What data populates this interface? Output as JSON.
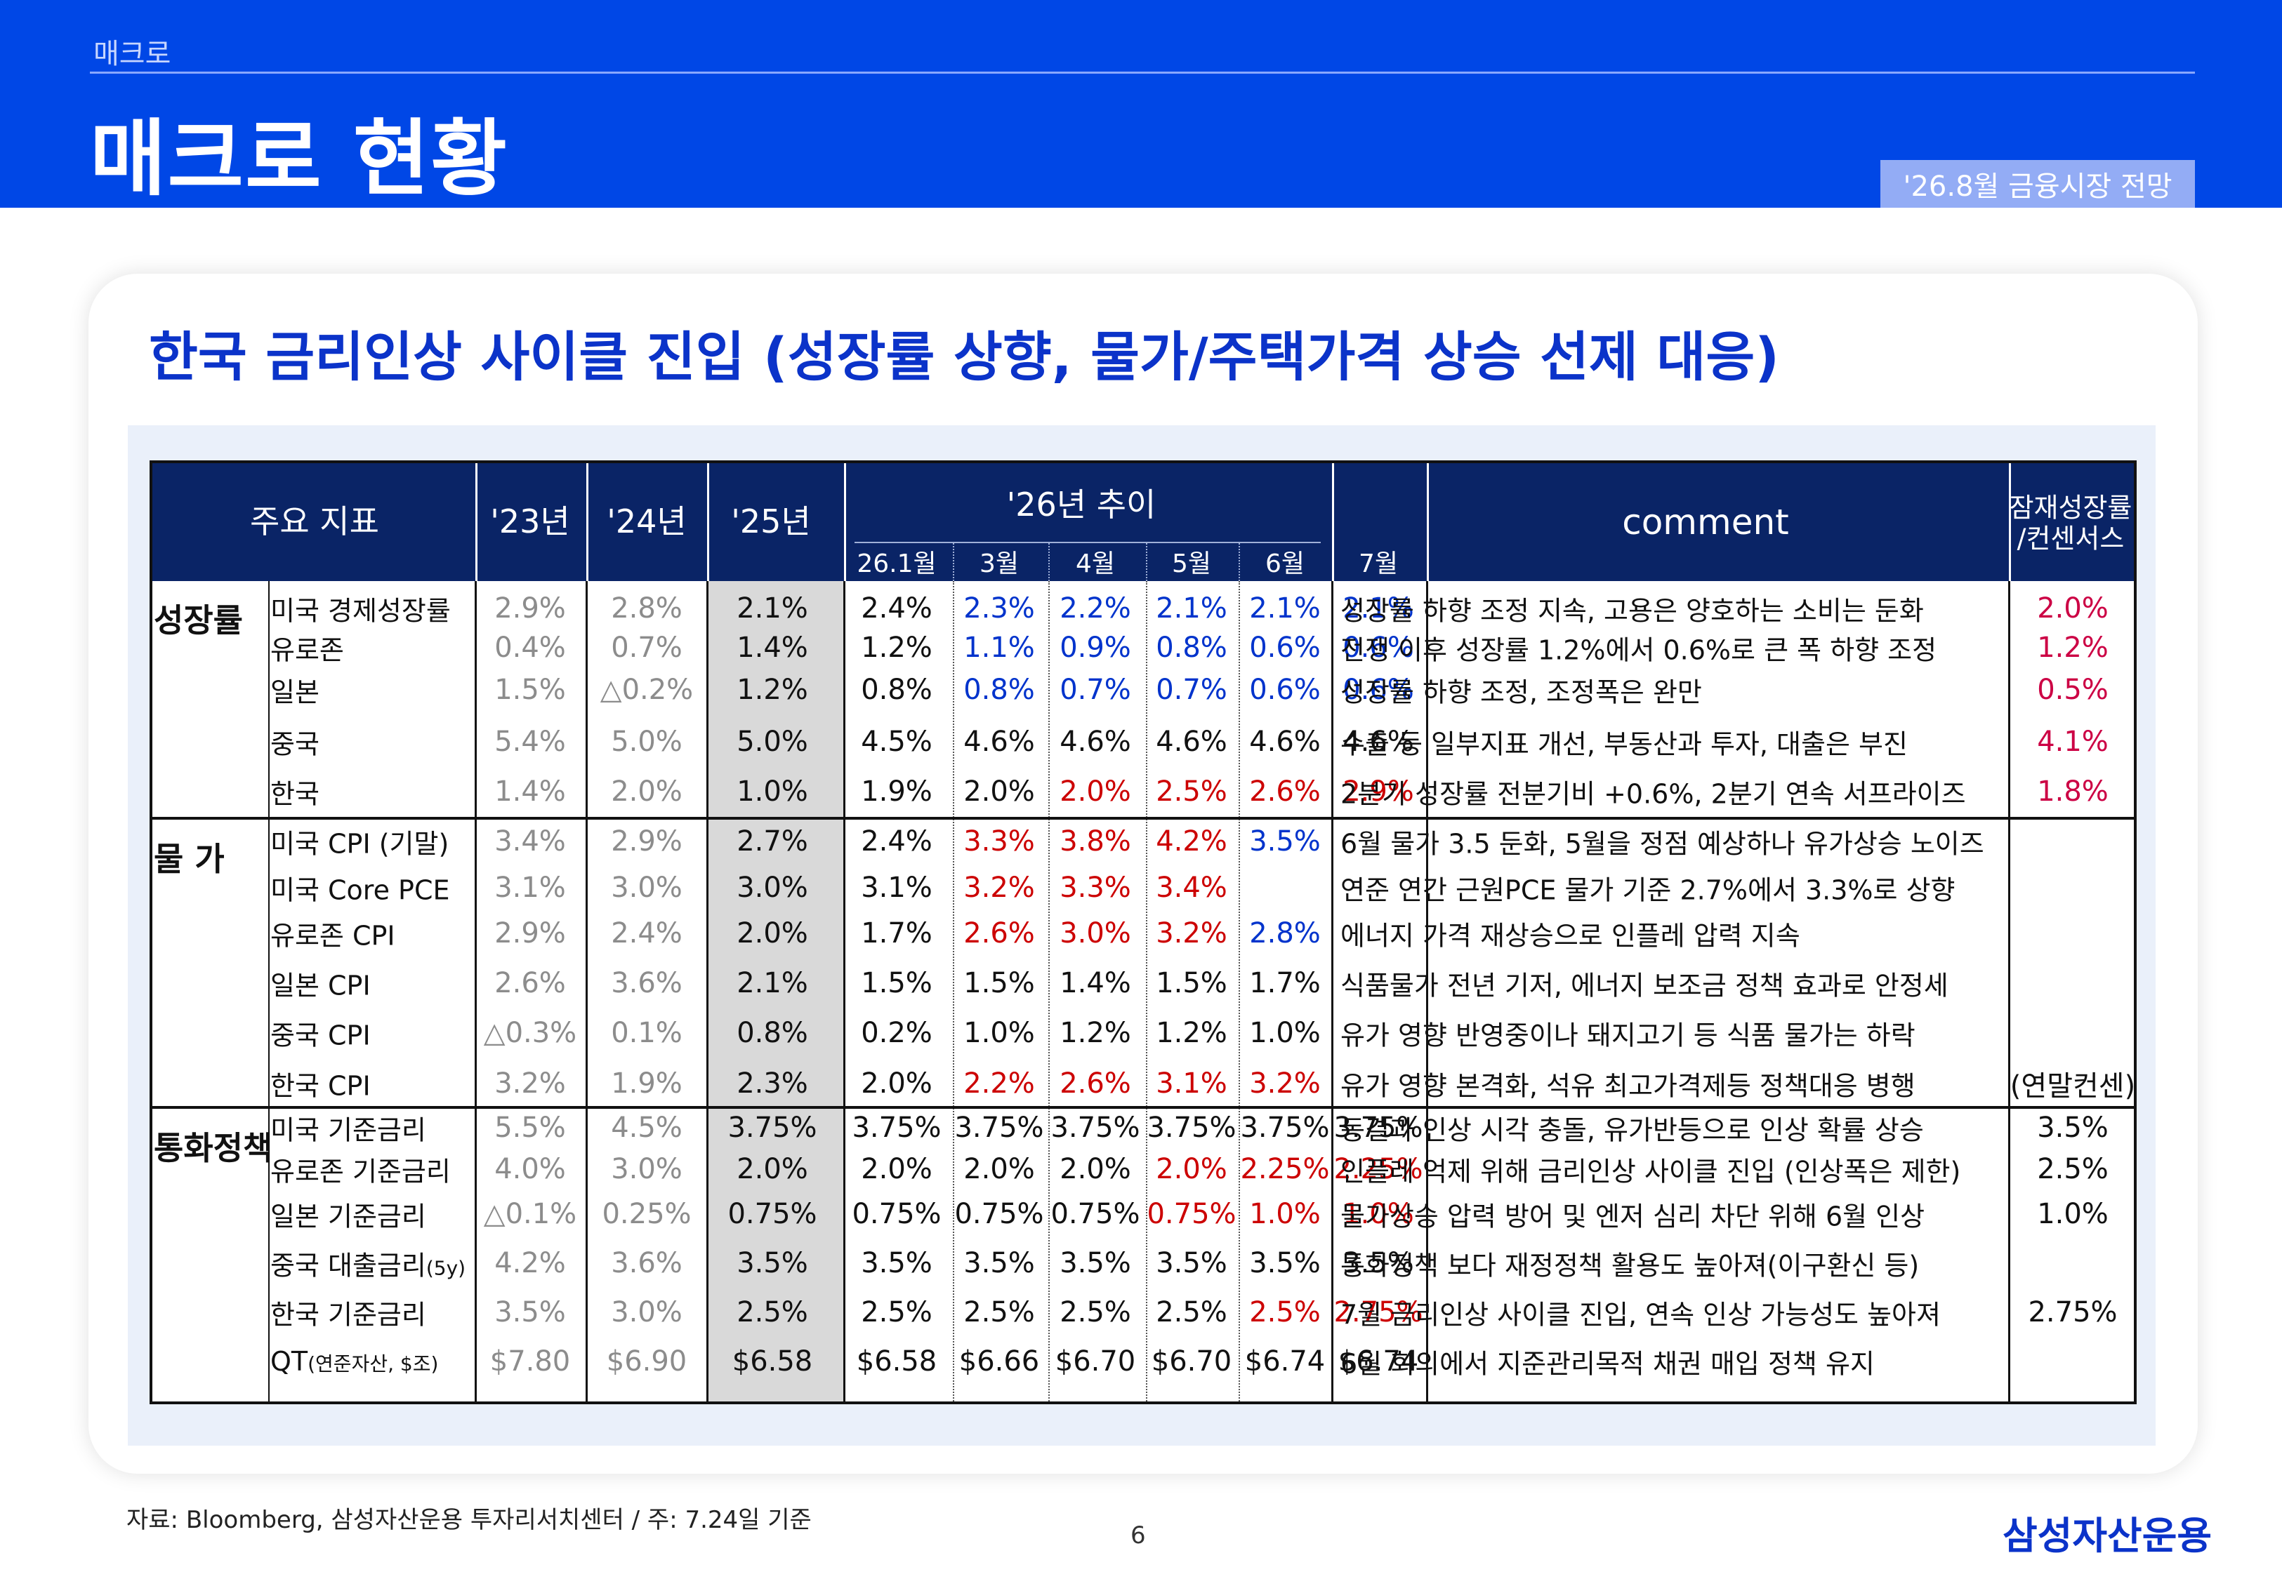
{
  "header": {
    "breadcrumb": "매크로",
    "title": "매크로 현황",
    "badge": "'26.8월 금융시장 전망"
  },
  "subtitle": "한국 금리인상 사이클 진입 (성장률 상향, 물가/주택가격 상승 선제 대응)",
  "table": {
    "headers": {
      "indicator": "주요 지표",
      "y23": "'23년",
      "y24": "'24년",
      "y25": "'25년",
      "trend": "'26년 추이",
      "months": [
        "26.1월",
        "3월",
        "4월",
        "5월",
        "6월",
        "7월"
      ],
      "comment": "comment",
      "potential_line1": "잠재성장률",
      "potential_line2": "/컨센서스"
    },
    "sections": [
      {
        "category": "성장률",
        "rows": [
          {
            "label": "미국 경제성장률",
            "y23": "2.9%",
            "y24": "2.8%",
            "y25": "2.1%",
            "m": [
              "2.4%",
              "2.3%",
              "2.2%",
              "2.1%",
              "2.1%",
              "2.1%"
            ],
            "mc": [
              "black",
              "blue",
              "blue",
              "blue",
              "blue",
              "blue"
            ],
            "comment": "성장률 하향 조정 지속, 고용은 양호하는 소비는 둔화",
            "pot": "2.0%",
            "potc": "pink"
          },
          {
            "label": "유로존",
            "y23": "0.4%",
            "y24": "0.7%",
            "y25": "1.4%",
            "m": [
              "1.2%",
              "1.1%",
              "0.9%",
              "0.8%",
              "0.6%",
              "0.6%"
            ],
            "mc": [
              "black",
              "blue",
              "blue",
              "blue",
              "blue",
              "blue"
            ],
            "comment": "전쟁 이후 성장률 1.2%에서 0.6%로 큰 폭 하향 조정",
            "pot": "1.2%",
            "potc": "pink"
          },
          {
            "label": "일본",
            "y23": "1.5%",
            "y24": "△0.2%",
            "y25": "1.2%",
            "m": [
              "0.8%",
              "0.8%",
              "0.7%",
              "0.7%",
              "0.6%",
              "0.6%"
            ],
            "mc": [
              "black",
              "blue",
              "blue",
              "blue",
              "blue",
              "blue"
            ],
            "comment": "성장률 하향 조정, 조정폭은 완만",
            "pot": "0.5%",
            "potc": "pink"
          },
          {
            "label": "중국",
            "y23": "5.4%",
            "y24": "5.0%",
            "y25": "5.0%",
            "m": [
              "4.5%",
              "4.6%",
              "4.6%",
              "4.6%",
              "4.6%",
              "4.6%"
            ],
            "mc": [
              "black",
              "black",
              "black",
              "black",
              "black",
              "black"
            ],
            "comment": "수출 등 일부지표 개선, 부동산과 투자, 대출은 부진",
            "pot": "4.1%",
            "potc": "pink"
          },
          {
            "label": "한국",
            "y23": "1.4%",
            "y24": "2.0%",
            "y25": "1.0%",
            "m": [
              "1.9%",
              "2.0%",
              "2.0%",
              "2.5%",
              "2.6%",
              "2.9%"
            ],
            "mc": [
              "black",
              "black",
              "red",
              "red",
              "red",
              "red"
            ],
            "comment": "2분기 성장률 전분기비 +0.6%, 2분기 연속 서프라이즈",
            "pot": "1.8%",
            "potc": "pink"
          }
        ]
      },
      {
        "category": "물 가",
        "rows": [
          {
            "label": "미국 CPI (기말)",
            "y23": "3.4%",
            "y24": "2.9%",
            "y25": "2.7%",
            "m": [
              "2.4%",
              "3.3%",
              "3.8%",
              "4.2%",
              "3.5%",
              ""
            ],
            "mc": [
              "black",
              "red",
              "red",
              "red",
              "blue",
              "black"
            ],
            "comment": "6월 물가 3.5 둔화, 5월을 정점 예상하나 유가상승 노이즈",
            "pot": "",
            "potc": "black"
          },
          {
            "label": "미국 Core PCE",
            "y23": "3.1%",
            "y24": "3.0%",
            "y25": "3.0%",
            "m": [
              "3.1%",
              "3.2%",
              "3.3%",
              "3.4%",
              "",
              ""
            ],
            "mc": [
              "black",
              "red",
              "red",
              "red",
              "black",
              "black"
            ],
            "comment": "연준 연간 근원PCE 물가 기준 2.7%에서 3.3%로 상향",
            "pot": "",
            "potc": "black"
          },
          {
            "label": "유로존 CPI",
            "y23": "2.9%",
            "y24": "2.4%",
            "y25": "2.0%",
            "m": [
              "1.7%",
              "2.6%",
              "3.0%",
              "3.2%",
              "2.8%",
              ""
            ],
            "mc": [
              "black",
              "red",
              "red",
              "red",
              "blue",
              "black"
            ],
            "comment": "에너지 가격 재상승으로 인플레 압력 지속",
            "pot": "",
            "potc": "black"
          },
          {
            "label": "일본 CPI",
            "y23": "2.6%",
            "y24": "3.6%",
            "y25": "2.1%",
            "m": [
              "1.5%",
              "1.5%",
              "1.4%",
              "1.5%",
              "1.7%",
              ""
            ],
            "mc": [
              "black",
              "black",
              "black",
              "black",
              "black",
              "black"
            ],
            "comment": "식품물가 전년 기저, 에너지 보조금 정책 효과로 안정세",
            "pot": "",
            "potc": "black"
          },
          {
            "label": "중국 CPI",
            "y23": "△0.3%",
            "y24": "0.1%",
            "y25": "0.8%",
            "m": [
              "0.2%",
              "1.0%",
              "1.2%",
              "1.2%",
              "1.0%",
              ""
            ],
            "mc": [
              "black",
              "black",
              "black",
              "black",
              "black",
              "black"
            ],
            "comment": "유가 영향 반영중이나 돼지고기 등 식품 물가는 하락",
            "pot": "",
            "potc": "black"
          },
          {
            "label": "한국 CPI",
            "y23": "3.2%",
            "y24": "1.9%",
            "y25": "2.3%",
            "m": [
              "2.0%",
              "2.2%",
              "2.6%",
              "3.1%",
              "3.2%",
              ""
            ],
            "mc": [
              "black",
              "red",
              "red",
              "red",
              "red",
              "black"
            ],
            "comment": "유가 영향 본격화, 석유 최고가격제등 정책대응 병행",
            "pot": "(연말컨센)",
            "potc": "black"
          }
        ]
      },
      {
        "category": "통화정책",
        "rows": [
          {
            "label": "미국 기준금리",
            "y23": "5.5%",
            "y24": "4.5%",
            "y25": "3.75%",
            "m": [
              "3.75%",
              "3.75%",
              "3.75%",
              "3.75%",
              "3.75%",
              "3.75%"
            ],
            "mc": [
              "black",
              "black",
              "black",
              "black",
              "black",
              "black"
            ],
            "comment": "동결과 인상 시각 충돌, 유가반등으로 인상 확률 상승",
            "pot": "3.5%",
            "potc": "black"
          },
          {
            "label": "유로존 기준금리",
            "y23": "4.0%",
            "y24": "3.0%",
            "y25": "2.0%",
            "m": [
              "2.0%",
              "2.0%",
              "2.0%",
              "2.0%",
              "2.25%",
              "2.25%"
            ],
            "mc": [
              "black",
              "black",
              "black",
              "red",
              "red",
              "red"
            ],
            "comment": "인플레 억제 위해 금리인상 사이클 진입 (인상폭은 제한)",
            "pot": "2.5%",
            "potc": "black"
          },
          {
            "label": "일본 기준금리",
            "y23": "△0.1%",
            "y24": "0.25%",
            "y25": "0.75%",
            "m": [
              "0.75%",
              "0.75%",
              "0.75%",
              "0.75%",
              "1.0%",
              "1.0%"
            ],
            "mc": [
              "black",
              "black",
              "black",
              "red",
              "red",
              "red"
            ],
            "comment": "물가상승 압력 방어 및 엔저 심리 차단 위해 6월 인상",
            "pot": "1.0%",
            "potc": "black"
          },
          {
            "label": "중국 대출금리",
            "label_small": "(5y)",
            "y23": "4.2%",
            "y24": "3.6%",
            "y25": "3.5%",
            "m": [
              "3.5%",
              "3.5%",
              "3.5%",
              "3.5%",
              "3.5%",
              "3.5%"
            ],
            "mc": [
              "black",
              "black",
              "black",
              "black",
              "black",
              "black"
            ],
            "comment": "통화정책 보다 재정정책 활용도 높아져(이구환신 등)",
            "pot": "",
            "potc": "black"
          },
          {
            "label": "한국 기준금리",
            "y23": "3.5%",
            "y24": "3.0%",
            "y25": "2.5%",
            "m": [
              "2.5%",
              "2.5%",
              "2.5%",
              "2.5%",
              "2.5%",
              "2.75%"
            ],
            "mc": [
              "black",
              "black",
              "black",
              "black",
              "red",
              "red"
            ],
            "comment": "7월 금리인상 사이클 진입, 연속 인상 가능성도 높아져",
            "pot": "2.75%",
            "potc": "black"
          },
          {
            "label": "QT",
            "label_small": "(연준자산, $조)",
            "y23": "$7.80",
            "y24": "$6.90",
            "y25": "$6.58",
            "m": [
              "$6.58",
              "$6.66",
              "$6.70",
              "$6.70",
              "$6.74",
              "$6.74"
            ],
            "mc": [
              "black",
              "black",
              "black",
              "black",
              "black",
              "black"
            ],
            "comment": "6월 회의에서 지준관리목적 채권 매입 정책 유지",
            "pot": "",
            "potc": "black"
          }
        ]
      }
    ]
  },
  "footer": {
    "source": "자료: Bloomberg, 삼성자산운용 투자리서치센터 / 주: 7.24일 기준",
    "page": "6",
    "logo": "삼성자산운용"
  }
}
